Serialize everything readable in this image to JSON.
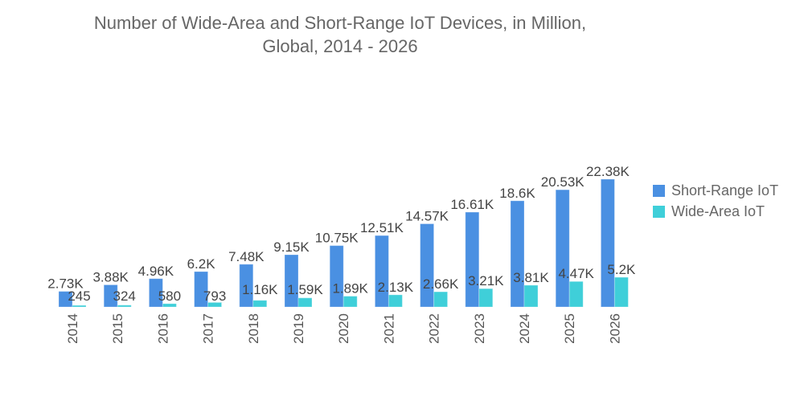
{
  "chart_data": {
    "type": "bar",
    "title": "Number of Wide-Area and Short-Range IoT Devices, in Million, Global, 2014 - 2026",
    "title_lines": [
      "Number of Wide-Area and Short-Range IoT Devices, in Million,",
      "Global, 2014 - 2026"
    ],
    "xlabel": "",
    "ylabel": "",
    "ylim": [
      0,
      22.38
    ],
    "grid": false,
    "legend_position": "right",
    "categories": [
      "2014",
      "2015",
      "2016",
      "2017",
      "2018",
      "2019",
      "2020",
      "2021",
      "2022",
      "2023",
      "2024",
      "2025",
      "2026"
    ],
    "series": [
      {
        "name": "Short-Range IoT",
        "color": "#4a90e2",
        "values": [
          2.73,
          3.88,
          4.96,
          6.2,
          7.48,
          9.15,
          10.75,
          12.51,
          14.57,
          16.61,
          18.6,
          20.53,
          22.38
        ],
        "labels": [
          "2.73K",
          "3.88K",
          "4.96K",
          "6.2K",
          "7.48K",
          "9.15K",
          "10.75K",
          "12.51K",
          "14.57K",
          "16.61K",
          "18.6K",
          "20.53K",
          "22.38K"
        ]
      },
      {
        "name": "Wide-Area IoT",
        "color": "#3fcfd9",
        "values": [
          0.245,
          0.324,
          0.58,
          0.793,
          1.16,
          1.59,
          1.89,
          2.13,
          2.66,
          3.21,
          3.81,
          4.47,
          5.2
        ],
        "labels": [
          "245",
          "324",
          "580",
          "793",
          "1.16K",
          "1.59K",
          "1.89K",
          "2.13K",
          "2.66K",
          "3.21K",
          "3.81K",
          "4.47K",
          "5.2K"
        ]
      }
    ]
  }
}
